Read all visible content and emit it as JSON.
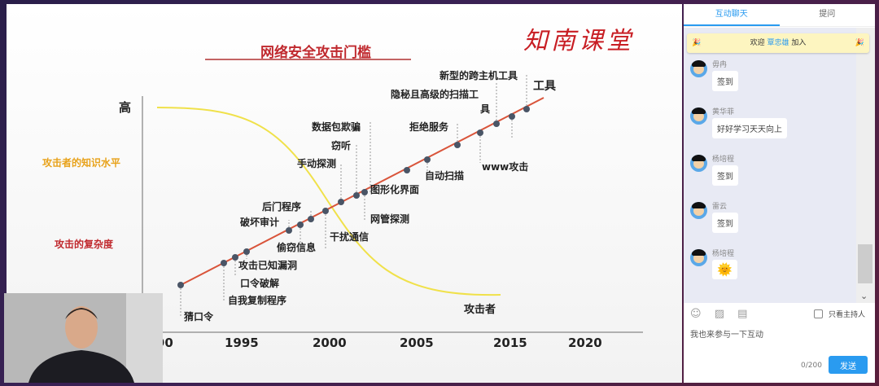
{
  "slide": {
    "title": "网络安全攻击门槛",
    "logo": "知南课堂",
    "y_high": "高",
    "left_label_knowledge": "攻击者的知识水平",
    "left_label_complexity": "攻击的复杂度",
    "curve_label": "攻击者",
    "line_end_label": "工具",
    "years": [
      "90",
      "1995",
      "2000",
      "2005",
      "2015",
      "2020"
    ],
    "events": [
      "猜口令",
      "自我复制程序",
      "口令破解",
      "攻击已知漏洞",
      "破坏审计",
      "后门程序",
      "偷窃信息",
      "干扰通信",
      "手动探测",
      "窃听",
      "数据包欺骗",
      "图形化界面",
      "网管探测",
      "自动扫描",
      "拒绝服务",
      "www攻击",
      "隐秘且高级的扫描工",
      "具",
      "新型的跨主机工具"
    ],
    "colors": {
      "line": "#d9543a",
      "curve": "#f0e14a",
      "dot": "#4a5566",
      "title": "#c0292e"
    }
  },
  "chat": {
    "tabs": [
      "互动聊天",
      "提问"
    ],
    "welcome_prefix": "欢迎",
    "welcome_name": "覃忠雄",
    "welcome_suffix": "加入",
    "messages": [
      {
        "name": "毋冉",
        "text": "签到"
      },
      {
        "name": "黄华菲",
        "text": "好好学习天天向上"
      },
      {
        "name": "杨培程",
        "text": "签到"
      },
      {
        "name": "雷云",
        "text": "签到"
      },
      {
        "name": "杨培程",
        "text": "🌞"
      }
    ],
    "host_only_label": "只看主持人",
    "input_value": "我也来参与一下互动",
    "char_count": "0/200",
    "send_label": "发送",
    "accent": "#2a9bf0"
  }
}
